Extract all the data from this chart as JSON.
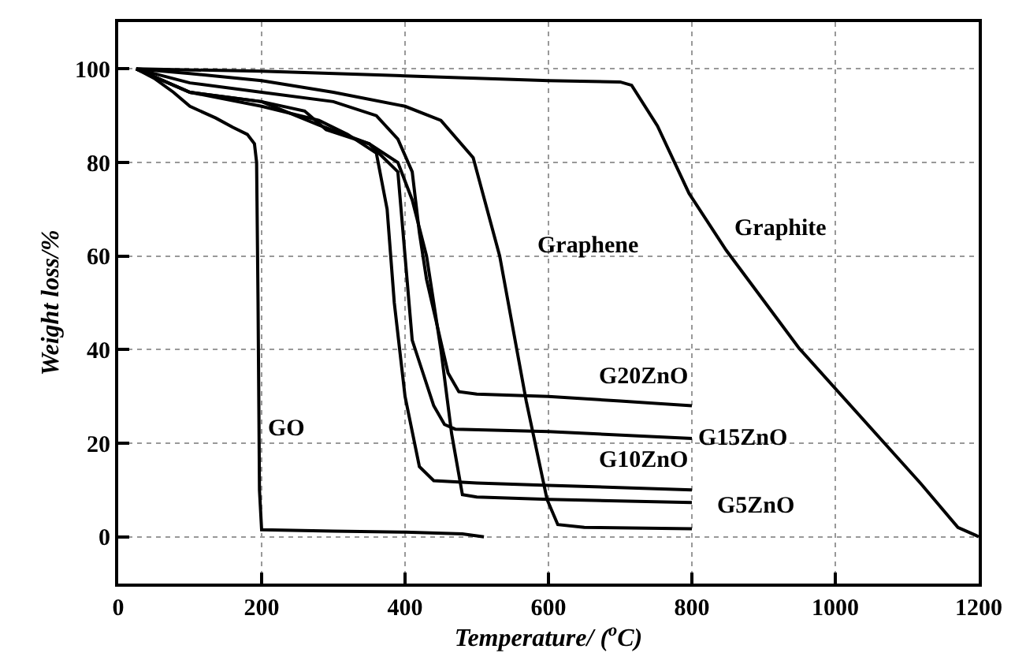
{
  "chart_data": {
    "type": "line",
    "xlabel": "Temperature/ ($^{o}$C)",
    "ylabel": "Weight loss/%",
    "xlim": [
      0,
      1200
    ],
    "ylim": [
      -10,
      110
    ],
    "xticks": [
      0,
      200,
      400,
      600,
      800,
      1000,
      1200
    ],
    "yticks": [
      0,
      20,
      40,
      60,
      80,
      100
    ],
    "grid": true,
    "legend": false,
    "marker": "none",
    "line_style": "solid",
    "series": [
      {
        "name": "GO",
        "color": "#000000",
        "x": [
          25,
          50,
          77,
          100,
          136,
          160,
          180,
          190,
          193,
          195,
          197,
          200,
          300,
          400,
          480,
          510
        ],
        "values": [
          100,
          98,
          95,
          92,
          89.5,
          87.5,
          86,
          84,
          80,
          50,
          10,
          1.5,
          1.2,
          1,
          0.6,
          0
        ]
      },
      {
        "name": "Graphite",
        "color": "#000000",
        "x": [
          25,
          200,
          400,
          600,
          700,
          716,
          752,
          796,
          848,
          950,
          1119,
          1171,
          1196,
          1200
        ],
        "values": [
          100,
          99.5,
          98.5,
          97.5,
          97.2,
          96.5,
          87.8,
          73.4,
          61.2,
          40.2,
          11.4,
          2,
          0.3,
          0
        ]
      },
      {
        "name": "Graphene",
        "color": "#000000",
        "x": [
          25,
          100,
          200,
          300,
          400,
          450,
          495,
          532,
          569,
          598,
          613,
          650,
          800
        ],
        "values": [
          100,
          99,
          97.5,
          95,
          92,
          89,
          81,
          60,
          29,
          8,
          2.6,
          2,
          1.7
        ]
      },
      {
        "name": "G20ZnO",
        "color": "#000000",
        "x": [
          25,
          100,
          200,
          300,
          360,
          390,
          410,
          420,
          430,
          445,
          460,
          475,
          500,
          600,
          700,
          800
        ],
        "values": [
          100,
          97,
          95,
          93,
          90,
          85,
          78,
          65,
          55,
          45,
          35,
          31,
          30.5,
          30,
          29,
          28
        ]
      },
      {
        "name": "G15ZnO",
        "color": "#000000",
        "x": [
          25,
          100,
          200,
          260,
          290,
          350,
          390,
          400,
          410,
          425,
          440,
          455,
          470,
          600,
          800
        ],
        "values": [
          100,
          95,
          93,
          91,
          87,
          84,
          78,
          60,
          42,
          35,
          28,
          24,
          23,
          22.5,
          21
        ]
      },
      {
        "name": "G10ZnO",
        "color": "#000000",
        "x": [
          25,
          100,
          200,
          280,
          320,
          360,
          375,
          385,
          400,
          420,
          440,
          500,
          600,
          800
        ],
        "values": [
          100,
          95,
          92,
          89,
          86,
          82,
          70,
          50,
          30,
          15,
          12,
          11.5,
          11,
          10
        ]
      },
      {
        "name": "G5ZnO",
        "color": "#000000",
        "x": [
          25,
          100,
          200,
          280,
          350,
          390,
          410,
          430,
          450,
          465,
          480,
          500,
          600,
          800
        ],
        "values": [
          100,
          95,
          93,
          88,
          84,
          80,
          72,
          60,
          40,
          22,
          9,
          8.5,
          8,
          7.3
        ]
      }
    ]
  }
}
